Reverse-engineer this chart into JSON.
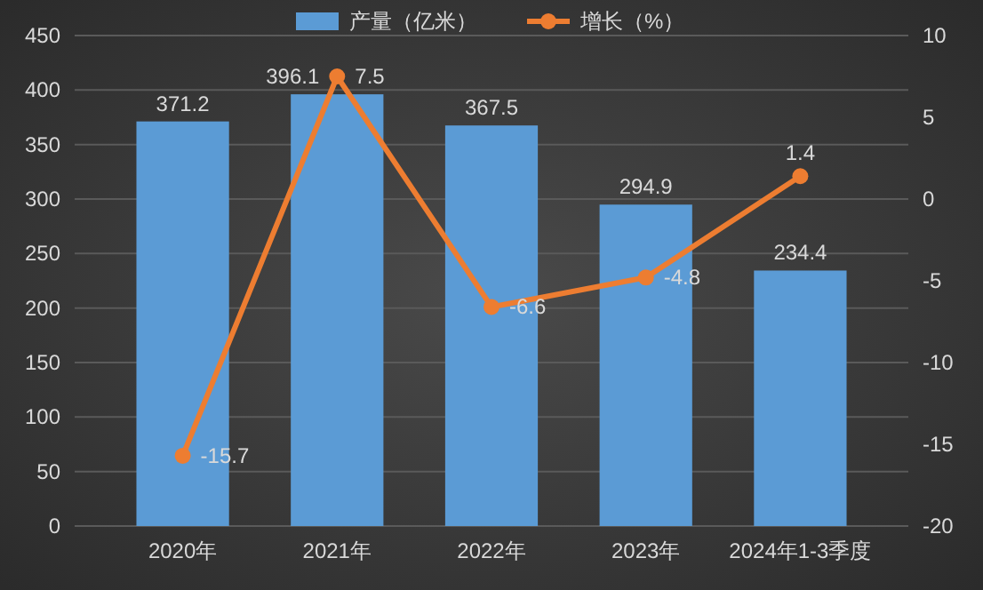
{
  "chart_data": {
    "type": "bar",
    "categories": [
      "2020年",
      "2021年",
      "2022年",
      "2023年",
      "2024年1-3季度"
    ],
    "series": [
      {
        "name": "产量（亿米）",
        "color": "#5b9bd5",
        "values": [
          371.2,
          396.1,
          367.5,
          294.9,
          234.4
        ]
      },
      {
        "name": "增长（%）",
        "type": "line",
        "axis": "y2",
        "color": "#ed7d31",
        "values": [
          -15.7,
          7.5,
          -6.6,
          -4.8,
          1.4
        ]
      }
    ],
    "ylim": [
      0,
      450
    ],
    "yticks": [
      0,
      50,
      100,
      150,
      200,
      250,
      300,
      350,
      400,
      450
    ],
    "y2lim": [
      -20,
      10
    ],
    "y2ticks": [
      -20,
      -15,
      -10,
      -5,
      0,
      5,
      10
    ],
    "grid": "y",
    "legend": "top",
    "marker": "circle",
    "data_labels": true
  }
}
